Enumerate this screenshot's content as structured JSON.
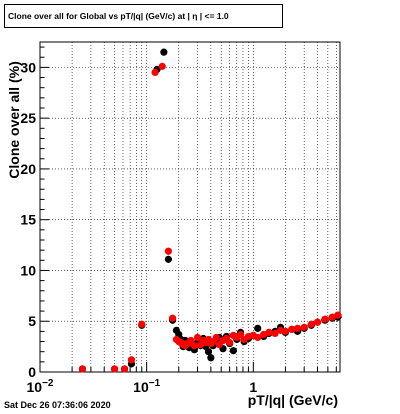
{
  "title": "Clone  over all for Global vs pT/|q| (GeV/c) at |  η | <= 1.0",
  "footer_timestamp": "Sat Dec 26 07:36:06 2020",
  "chart_data": {
    "type": "scatter",
    "title": "Clone  over all for Global vs pT/|q| (GeV/c) at |  η | <= 1.0",
    "xlabel": "pT/|q| (GeV/c)",
    "ylabel": "Clone  over all (%)",
    "xscale": "log",
    "xlim": [
      0.01,
      6.5
    ],
    "ylim": [
      0,
      32.5
    ],
    "grid": true,
    "x_tick_labels": [
      {
        "value": 0.01,
        "label": "10",
        "sup": "−2"
      },
      {
        "value": 0.1,
        "label": "10",
        "sup": "−1"
      },
      {
        "value": 1,
        "label": "1",
        "sup": ""
      }
    ],
    "y_ticks": [
      0,
      5,
      10,
      15,
      20,
      25,
      30
    ],
    "series": [
      {
        "color": "#000000",
        "points": [
          [
            0.025,
            0.3
          ],
          [
            0.05,
            0.3
          ],
          [
            0.062,
            0.3
          ],
          [
            0.072,
            0.8
          ],
          [
            0.09,
            4.6
          ],
          [
            0.125,
            29.8
          ],
          [
            0.145,
            31.5
          ],
          [
            0.16,
            11.1
          ],
          [
            0.175,
            5.1
          ],
          [
            0.19,
            4.1
          ],
          [
            0.2,
            3.7
          ],
          [
            0.21,
            3.2
          ],
          [
            0.22,
            2.5
          ],
          [
            0.23,
            3.1
          ],
          [
            0.24,
            2.8
          ],
          [
            0.25,
            2.4
          ],
          [
            0.26,
            2.7
          ],
          [
            0.28,
            2.2
          ],
          [
            0.3,
            2.9
          ],
          [
            0.32,
            2.6
          ],
          [
            0.34,
            3.3
          ],
          [
            0.36,
            2.5
          ],
          [
            0.38,
            2.0
          ],
          [
            0.4,
            1.4
          ],
          [
            0.42,
            2.6
          ],
          [
            0.45,
            3.0
          ],
          [
            0.48,
            3.4
          ],
          [
            0.52,
            2.3
          ],
          [
            0.56,
            3.5
          ],
          [
            0.6,
            2.8
          ],
          [
            0.65,
            2.1
          ],
          [
            0.7,
            3.2
          ],
          [
            0.76,
            3.9
          ],
          [
            0.82,
            3.0
          ],
          [
            0.9,
            3.3
          ],
          [
            1.0,
            3.6
          ],
          [
            1.1,
            4.3
          ],
          [
            1.25,
            3.5
          ],
          [
            1.4,
            3.8
          ],
          [
            1.6,
            4.0
          ],
          [
            1.8,
            4.4
          ],
          [
            2.0,
            3.9
          ],
          [
            2.3,
            4.2
          ],
          [
            2.6,
            4.0
          ],
          [
            3.0,
            4.3
          ],
          [
            3.5,
            4.6
          ],
          [
            4.0,
            4.9
          ],
          [
            4.7,
            5.1
          ],
          [
            5.5,
            5.3
          ],
          [
            6.2,
            5.4
          ]
        ]
      },
      {
        "color": "#ff0000",
        "points": [
          [
            0.025,
            0.3
          ],
          [
            0.05,
            0.3
          ],
          [
            0.062,
            0.3
          ],
          [
            0.072,
            1.2
          ],
          [
            0.09,
            4.7
          ],
          [
            0.12,
            29.5
          ],
          [
            0.14,
            30.1
          ],
          [
            0.16,
            11.9
          ],
          [
            0.175,
            5.3
          ],
          [
            0.19,
            3.2
          ],
          [
            0.2,
            3.0
          ],
          [
            0.21,
            2.9
          ],
          [
            0.22,
            2.7
          ],
          [
            0.23,
            2.6
          ],
          [
            0.24,
            2.8
          ],
          [
            0.25,
            2.9
          ],
          [
            0.26,
            3.1
          ],
          [
            0.28,
            2.6
          ],
          [
            0.3,
            3.4
          ],
          [
            0.32,
            2.7
          ],
          [
            0.34,
            3.1
          ],
          [
            0.36,
            2.9
          ],
          [
            0.38,
            3.2
          ],
          [
            0.4,
            2.8
          ],
          [
            0.42,
            3.0
          ],
          [
            0.45,
            3.4
          ],
          [
            0.48,
            2.7
          ],
          [
            0.52,
            3.1
          ],
          [
            0.56,
            3.3
          ],
          [
            0.6,
            2.9
          ],
          [
            0.65,
            3.6
          ],
          [
            0.7,
            3.4
          ],
          [
            0.76,
            3.7
          ],
          [
            0.82,
            3.2
          ],
          [
            0.9,
            3.5
          ],
          [
            1.0,
            3.6
          ],
          [
            1.1,
            3.4
          ],
          [
            1.25,
            3.7
          ],
          [
            1.4,
            3.9
          ],
          [
            1.6,
            3.8
          ],
          [
            1.8,
            4.1
          ],
          [
            2.0,
            4.0
          ],
          [
            2.3,
            4.2
          ],
          [
            2.6,
            4.3
          ],
          [
            3.0,
            4.4
          ],
          [
            3.5,
            4.7
          ],
          [
            4.0,
            4.9
          ],
          [
            4.7,
            5.2
          ],
          [
            5.5,
            5.4
          ],
          [
            6.2,
            5.6
          ]
        ]
      }
    ]
  }
}
